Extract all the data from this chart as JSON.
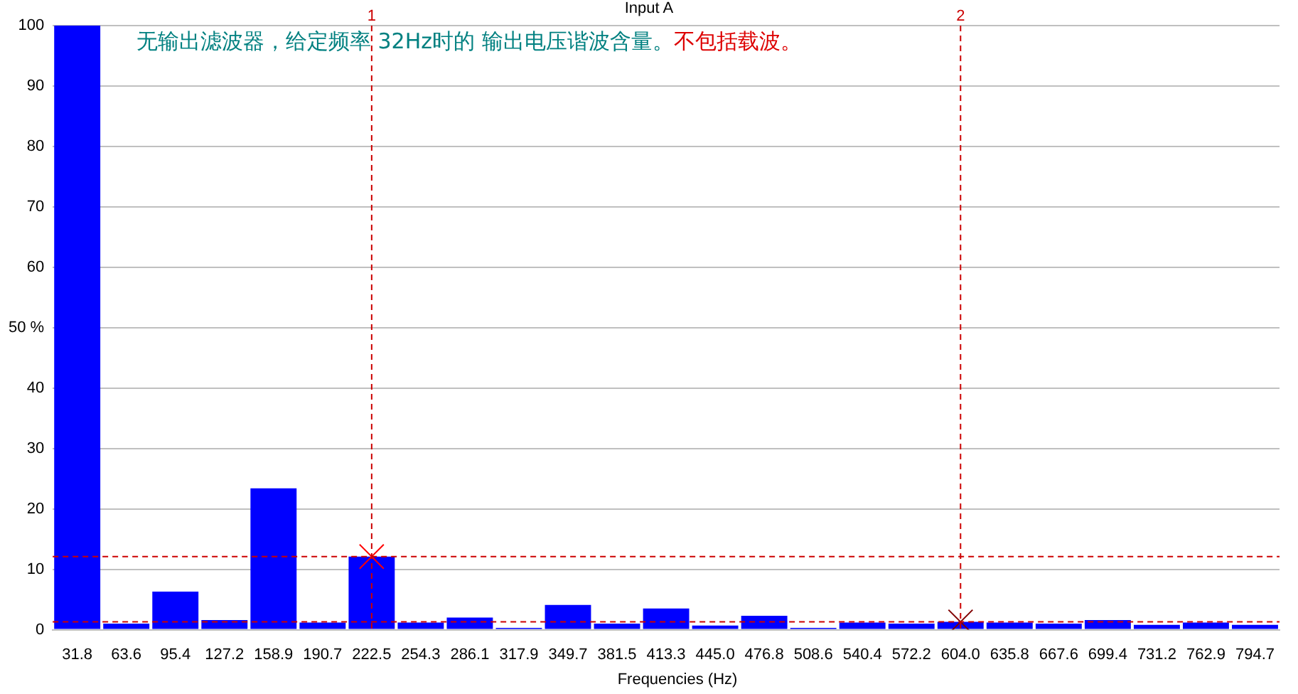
{
  "chart_data": {
    "type": "bar",
    "title": "Input A",
    "xlabel": "Frequencies (Hz)",
    "annotations": [
      "无输出滤波器，给定频率 32Hz时的 输出电压谐波含量。",
      "不包括载波。"
    ],
    "categories": [
      "31.8",
      "63.6",
      "95.4",
      "127.2",
      "158.9",
      "190.7",
      "222.5",
      "254.3",
      "286.1",
      "317.9",
      "349.7",
      "381.5",
      "413.3",
      "445.0",
      "476.8",
      "508.6",
      "540.4",
      "572.2",
      "604.0",
      "635.8",
      "667.6",
      "699.4",
      "731.2",
      "762.9",
      "794.7"
    ],
    "series": [
      {
        "color": "#0000ff",
        "values": [
          100,
          1.0,
          6.3,
          1.6,
          23.4,
          1.2,
          12.1,
          1.2,
          2.0,
          0.3,
          4.1,
          1.0,
          3.5,
          0.7,
          2.3,
          0.3,
          1.2,
          1.0,
          1.3,
          1.2,
          1.0,
          1.6,
          0.8,
          1.2,
          0.8
        ]
      },
      {
        "type": "scatter",
        "marker": "cross",
        "x": [
          "222.5",
          "604.0"
        ],
        "colors": [
          "#ff0000",
          "#800000"
        ],
        "values": [
          12.1,
          1.3
        ]
      }
    ],
    "ref_lines": [
      {
        "axis": "x",
        "value": "222.5",
        "label": "1",
        "color": "#cc0000",
        "line_style": "dashed"
      },
      {
        "axis": "x",
        "value": "604.0",
        "label": "2",
        "color": "#cc0000",
        "line_style": "dashed"
      },
      {
        "axis": "y",
        "value": 12.1,
        "color": "#cc0000",
        "line_style": "dashed"
      },
      {
        "axis": "y",
        "value": 1.3,
        "color": "#cc0000",
        "line_style": "dashed"
      }
    ],
    "ylim": [
      0,
      100
    ],
    "yticks": [
      0,
      10,
      20,
      30,
      40,
      {
        "value": 50,
        "label": "50 %"
      },
      60,
      70,
      80,
      90,
      100
    ],
    "grid": "y",
    "legend": false
  }
}
